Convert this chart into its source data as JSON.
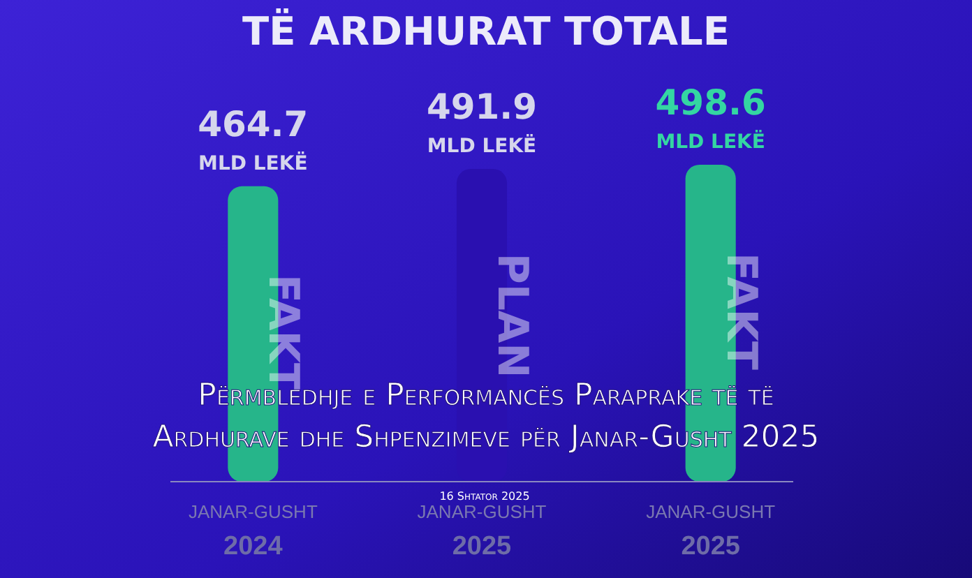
{
  "chart_data": {
    "type": "bar",
    "title": "TË ARDHURAT TOTALE",
    "categories": [
      "JANAR-GUSHT 2024",
      "JANAR-GUSHT 2025",
      "JANAR-GUSHT 2025"
    ],
    "values": [
      464.7,
      491.9,
      498.6
    ],
    "colors": [
      "#26b58a",
      "#2a10b0",
      "#26b58a"
    ],
    "value_labels": [
      "464.7 MLD LEKË",
      "491.9 MLD LEKË",
      "498.6 MLD LEKË"
    ],
    "annotations": [
      "FAKT",
      "PLAN",
      "FAKT",
      "Përmbledhje e Performancës Paraprake të të Ardhurave dhe Shpenzimeve për Janar-Gusht 2025",
      "16 Shtator 2025"
    ]
  }
}
